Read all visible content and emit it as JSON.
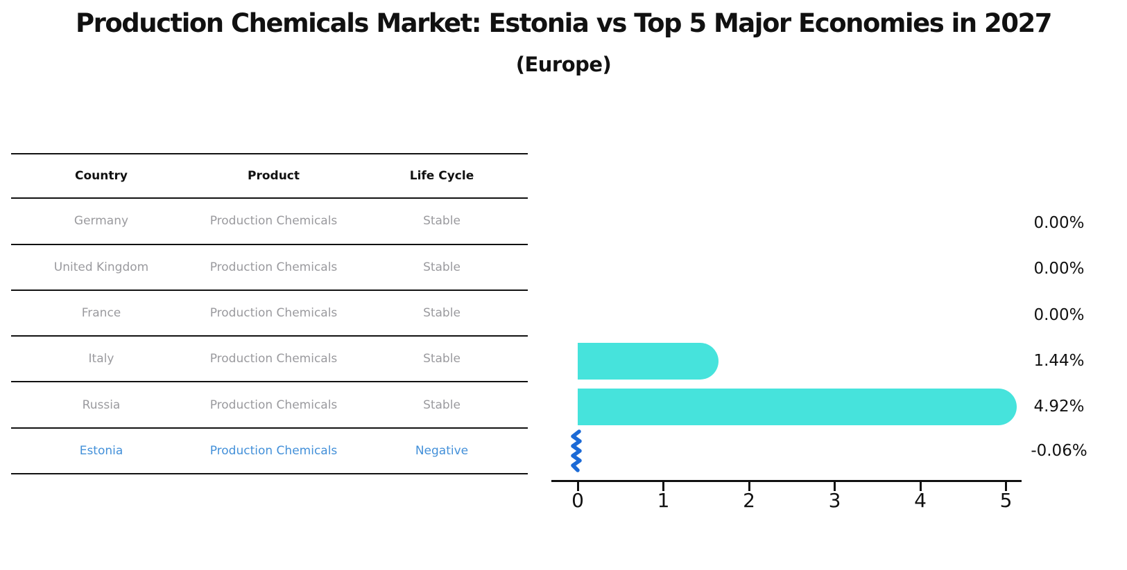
{
  "title": "Production Chemicals Market: Estonia vs Top 5 Major Economies in 2027",
  "subtitle": "(Europe)",
  "table": {
    "columns": [
      "Country",
      "Product",
      "Life Cycle"
    ],
    "rows": [
      {
        "country": "Germany",
        "product": "Production Chemicals",
        "life_cycle": "Stable"
      },
      {
        "country": "United Kingdom",
        "product": "Production Chemicals",
        "life_cycle": "Stable"
      },
      {
        "country": "France",
        "product": "Production Chemicals",
        "life_cycle": "Stable"
      },
      {
        "country": "Italy",
        "product": "Production Chemicals",
        "life_cycle": "Stable"
      },
      {
        "country": "Russia",
        "product": "Production Chemicals",
        "life_cycle": "Stable"
      },
      {
        "country": "Estonia",
        "product": "Production Chemicals",
        "life_cycle": "Negative"
      }
    ]
  },
  "chart_data": {
    "type": "bar",
    "orientation": "horizontal",
    "categories": [
      "Germany",
      "United Kingdom",
      "France",
      "Italy",
      "Russia",
      "Estonia"
    ],
    "values": [
      0.0,
      0.0,
      0.0,
      1.44,
      4.92,
      -0.06
    ],
    "value_labels": [
      "0.00%",
      "0.00%",
      "0.00%",
      "1.44%",
      "4.92%",
      "-0.06%"
    ],
    "x_ticks": [
      "0",
      "1",
      "2",
      "3",
      "4",
      "5"
    ],
    "xlim": [
      0,
      5
    ],
    "grid": false,
    "style": "xkcd-sketch",
    "bar_color": "#46e3dc",
    "negative_marker_color": "#1c6ad6",
    "highlight_row_color": "#4390d9",
    "value_unit": "percent CAGR"
  },
  "colors": {
    "background": "#ffffff",
    "title_text": "#111111",
    "table_text": "#9a9a9e",
    "table_header_text": "#111111",
    "highlight_text": "#4390d9",
    "bar": "#46e3dc",
    "negative_bar": "#1c6ad6",
    "axis": "#111111"
  }
}
